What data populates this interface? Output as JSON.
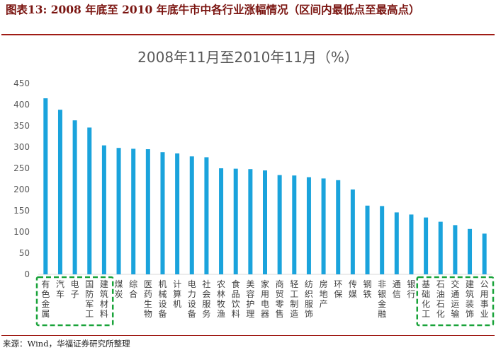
{
  "figure": {
    "title": "图表13:  2008 年底至 2010 年底牛市中各行业涨幅情况（区间内最低点至最高点）",
    "source": "来源：Wind，华福证券研究所整理"
  },
  "chart_data": {
    "type": "bar",
    "title": "2008年11月至2010年11月（%）",
    "xlabel": "",
    "ylabel": "",
    "ylim": [
      0,
      450
    ],
    "yticks": [
      0,
      50,
      100,
      150,
      200,
      250,
      300,
      350,
      400,
      450
    ],
    "grid": false,
    "legend": "none",
    "bar_color": "#1aa3dc",
    "highlight_color": "#1aa33a",
    "categories": [
      "有色金属",
      "汽车",
      "电子",
      "国防军工",
      "建筑材料",
      "煤炭",
      "综合",
      "医药生物",
      "机械设备",
      "计算机",
      "电力设备",
      "社会服务",
      "农林牧渔",
      "食品饮料",
      "美容护理",
      "家用电器",
      "商贸零售",
      "轻工制造",
      "纺织服饰",
      "房地产",
      "环保",
      "传媒",
      "钢铁",
      "非银金融",
      "通信",
      "银行",
      "基础化工",
      "石油石化",
      "交通运输",
      "建筑装饰",
      "公用事业"
    ],
    "values": [
      415,
      388,
      363,
      346,
      304,
      298,
      296,
      295,
      288,
      285,
      278,
      276,
      250,
      249,
      248,
      245,
      234,
      233,
      229,
      226,
      222,
      200,
      162,
      161,
      146,
      141,
      134,
      124,
      116,
      107,
      96
    ],
    "highlight_groups": [
      [
        0,
        4
      ],
      [
        26,
        30
      ]
    ]
  }
}
